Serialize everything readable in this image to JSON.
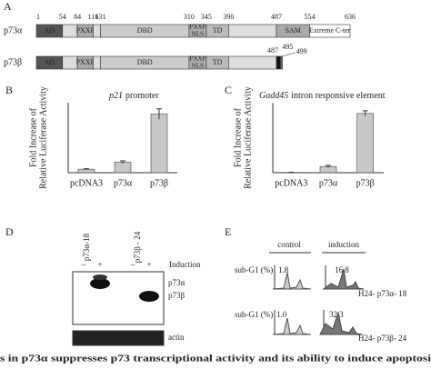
{
  "panel_a": {
    "label": "A",
    "rows": [
      {
        "name": "p73α",
        "positions": [
          1,
          54,
          84,
          116,
          131,
          310,
          345,
          390,
          487,
          554,
          636
        ],
        "domains": [
          "AD",
          "PXXP",
          "DBD",
          [
            "PXXP",
            "NLS"
          ],
          "TD",
          "SAM",
          "Extreme C-ter"
        ]
      },
      {
        "name": "p73β",
        "positions": [
          487,
          495,
          499
        ],
        "domains": [
          "AD",
          "PXXP",
          "DBD",
          [
            "PXXP",
            "NLS"
          ],
          "TD"
        ]
      }
    ]
  },
  "chart_data": [
    {
      "type": "bar",
      "panel": "B",
      "title_italic": "p21",
      "title": "promoter",
      "y_label": [
        "Fold Increase of",
        "Relative Luciferase Activity"
      ],
      "categories": [
        "pcDNA3",
        "p73α",
        "p73β"
      ],
      "values": [
        4,
        12,
        67
      ],
      "errors": [
        0.6,
        1.5,
        6
      ],
      "color": "#c8c8c8",
      "ylim": [
        0,
        80
      ]
    },
    {
      "type": "bar",
      "panel": "C",
      "title_italic": "Gadd45",
      "title": "intron responsive element",
      "y_label": [
        "Fold Increase of",
        "Relative Luciferase Activity"
      ],
      "categories": [
        "pcDNA3",
        "p73α",
        "p73β"
      ],
      "values": [
        5,
        115,
        1100
      ],
      "errors": [
        3,
        20,
        50
      ],
      "color": "#c8c8c8",
      "ylim": [
        0,
        1300
      ]
    }
  ],
  "panel_d": {
    "label": "D",
    "lanes": [
      "p73α-18",
      "p73β - 24"
    ],
    "induction": "Induction",
    "signs": [
      "–",
      "+",
      "–",
      "+"
    ],
    "bands": [
      "p73α",
      "p73β"
    ],
    "loading": "actin"
  },
  "panel_e": {
    "label": "E",
    "groups": [
      "control",
      "induction"
    ],
    "row_label": "sub-G1 (%)",
    "rows": [
      {
        "values": [
          "1.8",
          "16.8"
        ],
        "name": "H24- p73α- 18"
      },
      {
        "values": [
          "1.0",
          "32.3"
        ],
        "name": "H24- p73β- 24"
      }
    ]
  },
  "caption": "s in p73α suppresses p73 transcriptional activity and its ability to induce apoptosi"
}
